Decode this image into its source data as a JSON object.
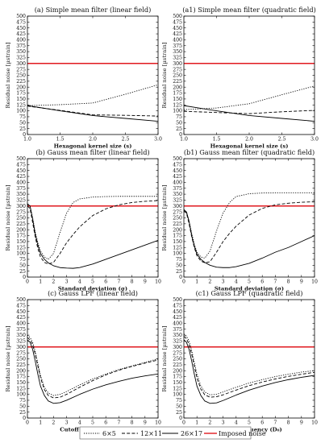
{
  "legend": {
    "entries": [
      {
        "label": "6×5",
        "dash": "1.2,1.6",
        "color": "#000000"
      },
      {
        "label": "12×11",
        "dash": "4,2.2",
        "color": "#000000"
      },
      {
        "label": "26×17",
        "dash": "",
        "color": "#000000"
      },
      {
        "label": "Imposed noise",
        "dash": "",
        "color": "#e0191f"
      }
    ]
  },
  "colors": {
    "series": "#000000",
    "imposed": "#e0191f"
  },
  "chart_data": [
    {
      "id": "a",
      "type": "line",
      "title": "(a) Simple mean filter (linear field)",
      "xlabel": "Hexagonal kernel size (s)",
      "ylabel": "Residual noise [µstrain]",
      "xlim": [
        1,
        3
      ],
      "ylim": [
        0,
        500
      ],
      "xticks": [
        1.0,
        1.5,
        2.0,
        2.5,
        3.0
      ],
      "xtick_decimals": 1,
      "yticks": [
        0,
        25,
        50,
        75,
        100,
        125,
        150,
        175,
        200,
        225,
        250,
        275,
        300,
        325,
        350,
        375,
        400,
        425,
        450,
        475,
        500
      ],
      "imposed_noise": 300,
      "series": [
        {
          "x": [
            1,
            1.5,
            2,
            2.5,
            3
          ],
          "y": [
            122,
            126,
            133,
            170,
            210
          ]
        },
        {
          "x": [
            1,
            1.5,
            2,
            2.5,
            3
          ],
          "y": [
            120,
            102,
            83,
            81,
            78
          ]
        },
        {
          "x": [
            1,
            1.5,
            2,
            2.5,
            3
          ],
          "y": [
            122,
            100,
            80,
            68,
            56
          ]
        }
      ]
    },
    {
      "id": "a1",
      "type": "line",
      "title": "(a1) Simple mean filter (quadratic field)",
      "xlabel": "Hexagonal kernel size (s)",
      "ylabel": "Residual noise [µstrain]",
      "xlim": [
        1,
        3
      ],
      "ylim": [
        0,
        500
      ],
      "xticks": [
        1.0,
        1.5,
        2.0,
        2.5,
        3.0
      ],
      "xtick_decimals": 1,
      "yticks": [
        0,
        25,
        50,
        75,
        100,
        125,
        150,
        175,
        200,
        225,
        250,
        275,
        300,
        325,
        350,
        375,
        400,
        425,
        450,
        475,
        500
      ],
      "imposed_noise": 300,
      "series": [
        {
          "x": [
            1,
            1.5,
            2,
            2.5,
            3
          ],
          "y": [
            105,
            112,
            130,
            168,
            205
          ]
        },
        {
          "x": [
            1,
            1.5,
            2,
            2.5,
            3
          ],
          "y": [
            98,
            93,
            88,
            96,
            102
          ]
        },
        {
          "x": [
            1,
            1.5,
            2,
            2.5,
            3
          ],
          "y": [
            122,
            100,
            80,
            68,
            56
          ]
        }
      ]
    },
    {
      "id": "b",
      "type": "line",
      "title": "(b) Gauss mean filter (linear field)",
      "xlabel": "Standard deviation (σ)",
      "ylabel": "Residual noise [µstrain]",
      "xlim": [
        0,
        10
      ],
      "ylim": [
        0,
        500
      ],
      "xticks": [
        0,
        1,
        2,
        3,
        4,
        5,
        6,
        7,
        8,
        9,
        10
      ],
      "xtick_decimals": 0,
      "yticks": [
        0,
        25,
        50,
        75,
        100,
        125,
        150,
        175,
        200,
        225,
        250,
        275,
        300,
        325,
        350,
        375,
        400,
        425,
        450,
        475,
        500
      ],
      "imposed_noise": 300,
      "series": [
        {
          "x": [
            0,
            0.2,
            0.4,
            0.6,
            0.8,
            1.0,
            1.3,
            1.6,
            2.0,
            2.5,
            3.0,
            3.5,
            4.0,
            5.0,
            6.0,
            7.0,
            8.0,
            9.0,
            10.0
          ],
          "y": [
            305,
            300,
            250,
            190,
            145,
            110,
            85,
            75,
            100,
            190,
            270,
            315,
            330,
            338,
            340,
            341,
            341,
            341,
            341
          ]
        },
        {
          "x": [
            0,
            0.2,
            0.4,
            0.6,
            0.8,
            1.0,
            1.3,
            1.6,
            2.0,
            2.5,
            3.0,
            3.5,
            4.0,
            5.0,
            6.0,
            7.0,
            8.0,
            9.0,
            10.0
          ],
          "y": [
            300,
            290,
            230,
            170,
            120,
            85,
            62,
            55,
            62,
            100,
            145,
            180,
            212,
            260,
            288,
            305,
            315,
            320,
            323
          ]
        },
        {
          "x": [
            0,
            0.2,
            0.4,
            0.6,
            0.8,
            1.0,
            1.3,
            1.6,
            2.0,
            2.5,
            3.0,
            3.5,
            4.0,
            5.0,
            6.0,
            7.0,
            8.0,
            9.0,
            10.0
          ],
          "y": [
            310,
            300,
            245,
            180,
            135,
            100,
            75,
            60,
            48,
            40,
            38,
            37,
            40,
            55,
            75,
            95,
            115,
            135,
            155
          ]
        }
      ]
    },
    {
      "id": "b1",
      "type": "line",
      "title": "(b1) Gauss mean filter (quadratic field)",
      "xlabel": "Standard deviation (σ)",
      "ylabel": "Residual noise [µstrain]",
      "xlim": [
        0,
        10
      ],
      "ylim": [
        0,
        500
      ],
      "xticks": [
        0,
        1,
        2,
        3,
        4,
        5,
        6,
        7,
        8,
        9,
        10
      ],
      "xtick_decimals": 0,
      "yticks": [
        0,
        25,
        50,
        75,
        100,
        125,
        150,
        175,
        200,
        225,
        250,
        275,
        300,
        325,
        350,
        375,
        400,
        425,
        450,
        475,
        500
      ],
      "imposed_noise": 300,
      "series": [
        {
          "x": [
            0,
            0.2,
            0.4,
            0.6,
            0.8,
            1.0,
            1.3,
            1.6,
            2.0,
            2.5,
            3.0,
            3.5,
            4.0,
            5.0,
            6.0,
            7.0,
            8.0,
            9.0,
            10.0
          ],
          "y": [
            285,
            275,
            235,
            185,
            140,
            105,
            85,
            80,
            110,
            195,
            270,
            315,
            340,
            352,
            355,
            356,
            356,
            356,
            356
          ]
        },
        {
          "x": [
            0,
            0.2,
            0.4,
            0.6,
            0.8,
            1.0,
            1.3,
            1.6,
            2.0,
            2.5,
            3.0,
            3.5,
            4.0,
            5.0,
            6.0,
            7.0,
            8.0,
            9.0,
            10.0
          ],
          "y": [
            280,
            270,
            225,
            170,
            125,
            90,
            68,
            60,
            65,
            105,
            150,
            185,
            215,
            262,
            290,
            305,
            312,
            316,
            318
          ]
        },
        {
          "x": [
            0,
            0.2,
            0.4,
            0.6,
            0.8,
            1.0,
            1.3,
            1.6,
            2.0,
            2.5,
            3.0,
            3.5,
            4.0,
            5.0,
            6.0,
            7.0,
            8.0,
            9.0,
            10.0
          ],
          "y": [
            285,
            275,
            235,
            175,
            130,
            98,
            75,
            62,
            50,
            42,
            40,
            40,
            44,
            58,
            80,
            105,
            125,
            150,
            175
          ]
        }
      ]
    },
    {
      "id": "c",
      "type": "line",
      "title": "(c) Gauss LPF (linear field)",
      "xlabel": "Cutoff frequency (D₀)",
      "ylabel": "Residual noise [µstrain]",
      "xlim": [
        0,
        10
      ],
      "ylim": [
        0,
        500
      ],
      "xticks": [
        0,
        1,
        2,
        3,
        4,
        5,
        6,
        7,
        8,
        9,
        10
      ],
      "xtick_decimals": 0,
      "yticks": [
        0,
        25,
        50,
        75,
        100,
        125,
        150,
        175,
        200,
        225,
        250,
        275,
        300,
        325,
        350,
        375,
        400,
        425,
        450,
        475,
        500
      ],
      "imposed_noise": 300,
      "series": [
        {
          "x": [
            0,
            0.2,
            0.4,
            0.6,
            0.8,
            1.0,
            1.3,
            1.6,
            2.0,
            2.5,
            3.0,
            4.0,
            5.0,
            6.0,
            7.0,
            8.0,
            9.0,
            10.0
          ],
          "y": [
            350,
            340,
            320,
            280,
            230,
            180,
            130,
            105,
            95,
            100,
            112,
            140,
            165,
            185,
            205,
            220,
            235,
            250
          ]
        },
        {
          "x": [
            0,
            0.2,
            0.4,
            0.6,
            0.8,
            1.0,
            1.3,
            1.6,
            2.0,
            2.5,
            3.0,
            4.0,
            5.0,
            6.0,
            7.0,
            8.0,
            9.0,
            10.0
          ],
          "y": [
            340,
            330,
            310,
            270,
            220,
            170,
            120,
            95,
            85,
            88,
            100,
            130,
            158,
            182,
            202,
            218,
            232,
            245
          ]
        },
        {
          "x": [
            0,
            0.2,
            0.4,
            0.6,
            0.8,
            1.0,
            1.3,
            1.6,
            2.0,
            2.5,
            3.0,
            4.0,
            5.0,
            6.0,
            7.0,
            8.0,
            9.0,
            10.0
          ],
          "y": [
            330,
            320,
            290,
            240,
            185,
            135,
            95,
            72,
            62,
            65,
            75,
            100,
            122,
            140,
            155,
            168,
            178,
            186
          ]
        }
      ]
    },
    {
      "id": "c1",
      "type": "line",
      "title": "(c1) Gauss LPF (quadratic field)",
      "xlabel": "Cutoff frequency (D₀)",
      "ylabel": "Residual noise [µstrain]",
      "xlim": [
        0,
        10
      ],
      "ylim": [
        0,
        500
      ],
      "xticks": [
        0,
        1,
        2,
        3,
        4,
        5,
        6,
        7,
        8,
        9,
        10
      ],
      "xtick_decimals": 0,
      "yticks": [
        0,
        25,
        50,
        75,
        100,
        125,
        150,
        175,
        200,
        225,
        250,
        275,
        300,
        325,
        350,
        375,
        400,
        425,
        450,
        475,
        500
      ],
      "imposed_noise": 300,
      "series": [
        {
          "x": [
            0,
            0.2,
            0.4,
            0.6,
            0.8,
            1.0,
            1.3,
            1.6,
            2.0,
            2.5,
            3.0,
            4.0,
            5.0,
            6.0,
            7.0,
            8.0,
            9.0,
            10.0
          ],
          "y": [
            355,
            345,
            325,
            285,
            235,
            185,
            135,
            110,
            98,
            100,
            110,
            130,
            148,
            162,
            175,
            185,
            194,
            200
          ]
        },
        {
          "x": [
            0,
            0.2,
            0.4,
            0.6,
            0.8,
            1.0,
            1.3,
            1.6,
            2.0,
            2.5,
            3.0,
            4.0,
            5.0,
            6.0,
            7.0,
            8.0,
            9.0,
            10.0
          ],
          "y": [
            345,
            335,
            310,
            270,
            220,
            170,
            122,
            98,
            88,
            90,
            98,
            118,
            137,
            152,
            165,
            176,
            185,
            193
          ]
        },
        {
          "x": [
            0,
            0.2,
            0.4,
            0.6,
            0.8,
            1.0,
            1.3,
            1.6,
            2.0,
            2.5,
            3.0,
            4.0,
            5.0,
            6.0,
            7.0,
            8.0,
            9.0,
            10.0
          ],
          "y": [
            330,
            320,
            290,
            240,
            185,
            135,
            95,
            72,
            62,
            64,
            74,
            97,
            118,
            135,
            150,
            162,
            172,
            180
          ]
        }
      ]
    }
  ]
}
